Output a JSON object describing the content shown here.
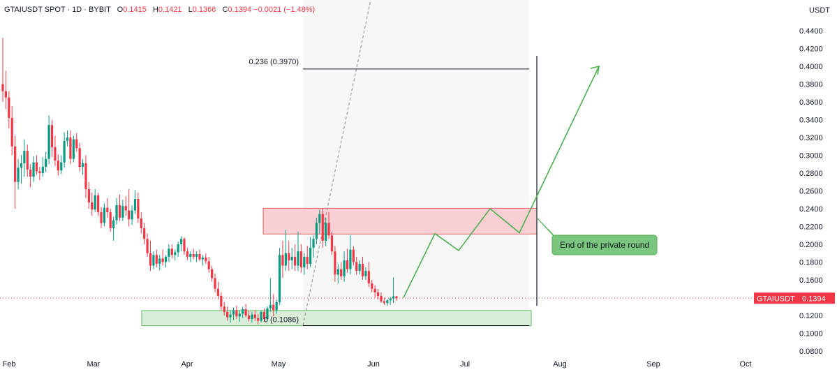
{
  "legend": {
    "symbol": "GTAIUSDT SPOT · 1D · BYBIT",
    "open_label": "O",
    "open": "0.1415",
    "high_label": "H",
    "high": "0.1421",
    "low_label": "L",
    "low": "0.1366",
    "close_label": "C",
    "close": "0.1394",
    "change": "−0.0021 (−1.48%)"
  },
  "currency": "USDT",
  "price_tag": {
    "symbol": "GTAIUSDT",
    "value": "0.1394"
  },
  "colors": {
    "up": "#089981",
    "down": "#f23645",
    "arrow": "#4caf50",
    "resistance_fill": "#f7c6ca",
    "support_fill": "#d2ecd3"
  },
  "chart_data": {
    "type": "candlestick",
    "y_axis": {
      "ticks": [
        "0.0800",
        "0.1000",
        "0.1200",
        "0.1400",
        "0.1600",
        "0.1800",
        "0.2000",
        "0.2200",
        "0.2400",
        "0.2600",
        "0.2800",
        "0.3000",
        "0.3200",
        "0.3400",
        "0.3600",
        "0.3800",
        "0.4000",
        "0.4200",
        "0.4400"
      ],
      "range": [
        0.075,
        0.455
      ]
    },
    "x_axis": {
      "ticks": [
        "Feb",
        "Mar",
        "Apr",
        "May",
        "Jun",
        "Jul",
        "Aug",
        "Sep",
        "Oct"
      ]
    },
    "last_price": 0.1394,
    "ohlc": [
      [
        0.38,
        0.432,
        0.36,
        0.372
      ],
      [
        0.372,
        0.395,
        0.352,
        0.365
      ],
      [
        0.365,
        0.372,
        0.33,
        0.342
      ],
      [
        0.342,
        0.355,
        0.3,
        0.31
      ],
      [
        0.31,
        0.322,
        0.24,
        0.27
      ],
      [
        0.27,
        0.296,
        0.262,
        0.286
      ],
      [
        0.286,
        0.3,
        0.268,
        0.291
      ],
      [
        0.291,
        0.318,
        0.276,
        0.305
      ],
      [
        0.305,
        0.312,
        0.276,
        0.284
      ],
      [
        0.284,
        0.29,
        0.264,
        0.276
      ],
      [
        0.276,
        0.299,
        0.27,
        0.292
      ],
      [
        0.292,
        0.3,
        0.278,
        0.282
      ],
      [
        0.282,
        0.287,
        0.272,
        0.28
      ],
      [
        0.28,
        0.298,
        0.276,
        0.287
      ],
      [
        0.287,
        0.304,
        0.281,
        0.296
      ],
      [
        0.296,
        0.345,
        0.29,
        0.334
      ],
      [
        0.334,
        0.34,
        0.298,
        0.309
      ],
      [
        0.309,
        0.322,
        0.288,
        0.294
      ],
      [
        0.294,
        0.301,
        0.277,
        0.283
      ],
      [
        0.283,
        0.3,
        0.279,
        0.292
      ],
      [
        0.292,
        0.326,
        0.286,
        0.316
      ],
      [
        0.316,
        0.328,
        0.31,
        0.32
      ],
      [
        0.32,
        0.328,
        0.29,
        0.296
      ],
      [
        0.296,
        0.322,
        0.292,
        0.318
      ],
      [
        0.318,
        0.325,
        0.304,
        0.308
      ],
      [
        0.308,
        0.314,
        0.282,
        0.287
      ],
      [
        0.287,
        0.296,
        0.278,
        0.291
      ],
      [
        0.291,
        0.3,
        0.252,
        0.262
      ],
      [
        0.262,
        0.27,
        0.24,
        0.247
      ],
      [
        0.247,
        0.258,
        0.232,
        0.239
      ],
      [
        0.239,
        0.262,
        0.236,
        0.255
      ],
      [
        0.255,
        0.258,
        0.232,
        0.236
      ],
      [
        0.236,
        0.242,
        0.218,
        0.224
      ],
      [
        0.224,
        0.246,
        0.22,
        0.241
      ],
      [
        0.241,
        0.252,
        0.23,
        0.236
      ],
      [
        0.236,
        0.24,
        0.214,
        0.218
      ],
      [
        0.218,
        0.231,
        0.204,
        0.227
      ],
      [
        0.227,
        0.252,
        0.222,
        0.244
      ],
      [
        0.244,
        0.256,
        0.226,
        0.23
      ],
      [
        0.23,
        0.25,
        0.226,
        0.243
      ],
      [
        0.243,
        0.254,
        0.232,
        0.238
      ],
      [
        0.238,
        0.262,
        0.22,
        0.228
      ],
      [
        0.228,
        0.244,
        0.222,
        0.238
      ],
      [
        0.238,
        0.261,
        0.234,
        0.251
      ],
      [
        0.251,
        0.258,
        0.224,
        0.229
      ],
      [
        0.229,
        0.236,
        0.212,
        0.218
      ],
      [
        0.218,
        0.224,
        0.2,
        0.206
      ],
      [
        0.206,
        0.212,
        0.186,
        0.19
      ],
      [
        0.19,
        0.204,
        0.17,
        0.176
      ],
      [
        0.176,
        0.192,
        0.172,
        0.188
      ],
      [
        0.188,
        0.194,
        0.174,
        0.178
      ],
      [
        0.178,
        0.188,
        0.171,
        0.184
      ],
      [
        0.184,
        0.194,
        0.176,
        0.18
      ],
      [
        0.18,
        0.188,
        0.174,
        0.186
      ],
      [
        0.186,
        0.2,
        0.18,
        0.195
      ],
      [
        0.195,
        0.2,
        0.184,
        0.188
      ],
      [
        0.188,
        0.194,
        0.182,
        0.191
      ],
      [
        0.191,
        0.203,
        0.186,
        0.2
      ],
      [
        0.2,
        0.209,
        0.192,
        0.206
      ],
      [
        0.206,
        0.208,
        0.188,
        0.192
      ],
      [
        0.192,
        0.196,
        0.182,
        0.186
      ],
      [
        0.186,
        0.192,
        0.18,
        0.189
      ],
      [
        0.189,
        0.195,
        0.183,
        0.186
      ],
      [
        0.186,
        0.192,
        0.18,
        0.189
      ],
      [
        0.189,
        0.194,
        0.181,
        0.183
      ],
      [
        0.183,
        0.188,
        0.176,
        0.185
      ],
      [
        0.185,
        0.19,
        0.178,
        0.181
      ],
      [
        0.181,
        0.186,
        0.168,
        0.172
      ],
      [
        0.172,
        0.176,
        0.158,
        0.162
      ],
      [
        0.162,
        0.167,
        0.146,
        0.15
      ],
      [
        0.15,
        0.158,
        0.138,
        0.142
      ],
      [
        0.142,
        0.146,
        0.126,
        0.13
      ],
      [
        0.13,
        0.135,
        0.12,
        0.124
      ],
      [
        0.124,
        0.13,
        0.114,
        0.118
      ],
      [
        0.118,
        0.126,
        0.112,
        0.121
      ],
      [
        0.121,
        0.129,
        0.115,
        0.126
      ],
      [
        0.126,
        0.131,
        0.116,
        0.119
      ],
      [
        0.119,
        0.126,
        0.113,
        0.122
      ],
      [
        0.122,
        0.13,
        0.117,
        0.127
      ],
      [
        0.127,
        0.133,
        0.118,
        0.12
      ],
      [
        0.12,
        0.125,
        0.113,
        0.116
      ],
      [
        0.116,
        0.124,
        0.112,
        0.121
      ],
      [
        0.121,
        0.126,
        0.114,
        0.117
      ],
      [
        0.117,
        0.122,
        0.11,
        0.114
      ],
      [
        0.114,
        0.126,
        0.112,
        0.124
      ],
      [
        0.124,
        0.128,
        0.113,
        0.116
      ],
      [
        0.116,
        0.13,
        0.114,
        0.128
      ],
      [
        0.128,
        0.162,
        0.124,
        0.132
      ],
      [
        0.132,
        0.144,
        0.119,
        0.126
      ],
      [
        0.126,
        0.138,
        0.122,
        0.135
      ],
      [
        0.135,
        0.196,
        0.132,
        0.188
      ],
      [
        0.188,
        0.204,
        0.162,
        0.176
      ],
      [
        0.176,
        0.216,
        0.17,
        0.19
      ],
      [
        0.19,
        0.204,
        0.17,
        0.182
      ],
      [
        0.182,
        0.196,
        0.172,
        0.186
      ],
      [
        0.186,
        0.2,
        0.17,
        0.176
      ],
      [
        0.176,
        0.214,
        0.17,
        0.192
      ],
      [
        0.192,
        0.2,
        0.168,
        0.174
      ],
      [
        0.174,
        0.19,
        0.166,
        0.186
      ],
      [
        0.186,
        0.198,
        0.172,
        0.178
      ],
      [
        0.178,
        0.208,
        0.174,
        0.196
      ],
      [
        0.196,
        0.21,
        0.185,
        0.206
      ],
      [
        0.206,
        0.23,
        0.2,
        0.224
      ],
      [
        0.224,
        0.239,
        0.212,
        0.234
      ],
      [
        0.234,
        0.24,
        0.196,
        0.204
      ],
      [
        0.204,
        0.23,
        0.198,
        0.224
      ],
      [
        0.224,
        0.236,
        0.206,
        0.21
      ],
      [
        0.21,
        0.214,
        0.188,
        0.192
      ],
      [
        0.192,
        0.198,
        0.158,
        0.166
      ],
      [
        0.166,
        0.178,
        0.156,
        0.172
      ],
      [
        0.172,
        0.18,
        0.16,
        0.164
      ],
      [
        0.164,
        0.192,
        0.158,
        0.182
      ],
      [
        0.182,
        0.195,
        0.168,
        0.172
      ],
      [
        0.172,
        0.21,
        0.166,
        0.194
      ],
      [
        0.194,
        0.198,
        0.176,
        0.18
      ],
      [
        0.18,
        0.186,
        0.166,
        0.17
      ],
      [
        0.17,
        0.182,
        0.166,
        0.178
      ],
      [
        0.178,
        0.186,
        0.16,
        0.164
      ],
      [
        0.164,
        0.174,
        0.16,
        0.17
      ],
      [
        0.17,
        0.18,
        0.152,
        0.156
      ],
      [
        0.156,
        0.16,
        0.146,
        0.15
      ],
      [
        0.15,
        0.154,
        0.14,
        0.146
      ],
      [
        0.146,
        0.15,
        0.138,
        0.142
      ],
      [
        0.142,
        0.146,
        0.134,
        0.136
      ],
      [
        0.136,
        0.14,
        0.132,
        0.134
      ],
      [
        0.134,
        0.138,
        0.131,
        0.137
      ],
      [
        0.137,
        0.141,
        0.132,
        0.139
      ],
      [
        0.139,
        0.163,
        0.134,
        0.1415
      ],
      [
        0.1415,
        0.1421,
        0.1366,
        0.1394
      ]
    ],
    "drawings": {
      "fib_levels": [
        {
          "label": "0.236 (0.3970)",
          "price": 0.397
        },
        {
          "label": "0 (0.1086)",
          "price": 0.1086
        }
      ],
      "resistance_zone": [
        0.2115,
        0.2405
      ],
      "support_zone": [
        0.1085,
        0.1255
      ],
      "projection_path": [
        0.14,
        0.212,
        0.193,
        0.24,
        0.213,
        0.4
      ],
      "annotation": "End of the private round"
    }
  }
}
